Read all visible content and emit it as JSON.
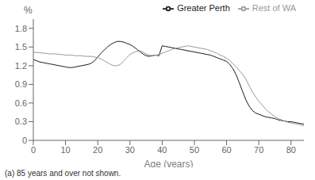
{
  "chart_data": {
    "type": "line",
    "xlabel": "Age (years)",
    "ylabel": "%",
    "annotations": [
      "(a) 85 years and over not shown."
    ],
    "x": [
      0,
      1,
      2,
      3,
      4,
      5,
      6,
      7,
      8,
      9,
      10,
      11,
      12,
      13,
      14,
      15,
      16,
      17,
      18,
      19,
      20,
      21,
      22,
      23,
      24,
      25,
      26,
      27,
      28,
      29,
      30,
      31,
      32,
      33,
      34,
      35,
      36,
      37,
      38,
      39,
      40,
      41,
      42,
      43,
      44,
      45,
      46,
      47,
      48,
      49,
      50,
      51,
      52,
      53,
      54,
      55,
      56,
      57,
      58,
      59,
      60,
      61,
      62,
      63,
      64,
      65,
      66,
      67,
      68,
      69,
      70,
      71,
      72,
      73,
      74,
      75,
      76,
      77,
      78,
      79,
      80,
      81,
      82,
      83,
      84
    ],
    "series": [
      {
        "name": "Greater Perth",
        "color": "#1a1a1a",
        "values": [
          1.3,
          1.28,
          1.26,
          1.25,
          1.24,
          1.23,
          1.22,
          1.21,
          1.2,
          1.19,
          1.18,
          1.17,
          1.17,
          1.18,
          1.19,
          1.2,
          1.21,
          1.22,
          1.24,
          1.28,
          1.34,
          1.4,
          1.45,
          1.5,
          1.54,
          1.57,
          1.59,
          1.59,
          1.58,
          1.56,
          1.54,
          1.51,
          1.47,
          1.43,
          1.39,
          1.36,
          1.35,
          1.36,
          1.37,
          1.36,
          1.52,
          1.51,
          1.5,
          1.49,
          1.48,
          1.47,
          1.46,
          1.45,
          1.44,
          1.43,
          1.42,
          1.41,
          1.4,
          1.39,
          1.38,
          1.37,
          1.35,
          1.33,
          1.31,
          1.29,
          1.27,
          1.22,
          1.15,
          1.05,
          0.92,
          0.78,
          0.65,
          0.55,
          0.48,
          0.44,
          0.42,
          0.4,
          0.38,
          0.37,
          0.36,
          0.35,
          0.33,
          0.32,
          0.31,
          0.3,
          0.3,
          0.29,
          0.28,
          0.27,
          0.26
        ]
      },
      {
        "name": "Rest of WA",
        "color": "#999999",
        "values": [
          1.42,
          1.41,
          1.41,
          1.4,
          1.4,
          1.39,
          1.39,
          1.39,
          1.38,
          1.38,
          1.37,
          1.37,
          1.37,
          1.36,
          1.36,
          1.36,
          1.35,
          1.35,
          1.35,
          1.34,
          1.33,
          1.31,
          1.28,
          1.25,
          1.22,
          1.2,
          1.2,
          1.22,
          1.27,
          1.33,
          1.38,
          1.41,
          1.43,
          1.44,
          1.42,
          1.39,
          1.37,
          1.36,
          1.37,
          1.38,
          1.4,
          1.42,
          1.44,
          1.46,
          1.48,
          1.49,
          1.5,
          1.51,
          1.52,
          1.51,
          1.5,
          1.49,
          1.48,
          1.47,
          1.46,
          1.44,
          1.42,
          1.4,
          1.37,
          1.35,
          1.32,
          1.28,
          1.23,
          1.18,
          1.12,
          1.06,
          0.98,
          0.88,
          0.78,
          0.7,
          0.63,
          0.57,
          0.51,
          0.46,
          0.42,
          0.38,
          0.35,
          0.33,
          0.31,
          0.29,
          0.28,
          0.27,
          0.26,
          0.25,
          0.23
        ]
      }
    ],
    "xlim": [
      0,
      84
    ],
    "ylim": [
      0,
      1.95
    ],
    "xticks": [
      0,
      10,
      20,
      30,
      40,
      50,
      60,
      70,
      80
    ],
    "yticks": [
      0,
      0.3,
      0.6,
      0.9,
      1.2,
      1.5,
      1.8
    ],
    "legend": "upper right",
    "grid": false
  }
}
